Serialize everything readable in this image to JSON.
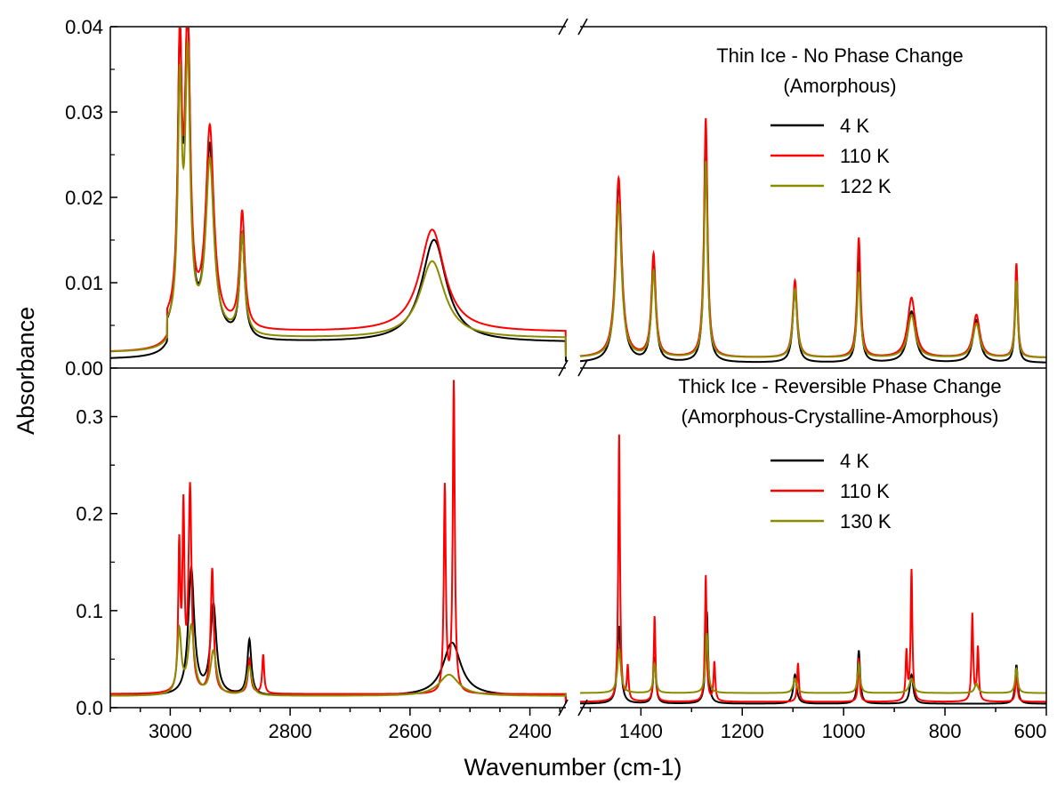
{
  "figure": {
    "ylabel": "Absorbance",
    "xlabel": "Wavenumber (cm-1)",
    "x_ticks_left": [
      "3000",
      "2800",
      "2600",
      "2400"
    ],
    "x_ticks_right": [
      "1400",
      "1200",
      "1000",
      "800",
      "600"
    ]
  },
  "colors": {
    "4 K": "#000000",
    "110 K": "#ff0000",
    "122 K": "#8b8b00",
    "130 K": "#8b8b00"
  },
  "chart_data": [
    {
      "type": "line",
      "panel": "top",
      "title": "Thin Ice - No Phase Change",
      "subtitle": "(Amorphous)",
      "xlabel": "Wavenumber (cm-1)",
      "ylabel": "Absorbance",
      "x_break": [
        2340,
        1520
      ],
      "xlim_left": [
        3100,
        2340
      ],
      "xlim_right": [
        1520,
        600
      ],
      "ylim": [
        0,
        0.04
      ],
      "y_ticks": [
        "0.00",
        "0.01",
        "0.02",
        "0.03",
        "0.04"
      ],
      "legend": "top-right",
      "series": [
        {
          "name": "4 K",
          "color": "#000000",
          "peaks": [
            {
              "x": 2984,
              "y": 0.032,
              "w": 4
            },
            {
              "x": 2971,
              "y": 0.036,
              "w": 5
            },
            {
              "x": 2934,
              "y": 0.022,
              "w": 8
            },
            {
              "x": 2880,
              "y": 0.012,
              "w": 5
            },
            {
              "x": 2560,
              "y": 0.012,
              "w": 25
            },
            {
              "x": 1444,
              "y": 0.021,
              "w": 7
            },
            {
              "x": 1375,
              "y": 0.012,
              "w": 5
            },
            {
              "x": 1272,
              "y": 0.027,
              "w": 4
            },
            {
              "x": 1096,
              "y": 0.009,
              "w": 5
            },
            {
              "x": 970,
              "y": 0.013,
              "w": 4
            },
            {
              "x": 866,
              "y": 0.006,
              "w": 9
            },
            {
              "x": 738,
              "y": 0.005,
              "w": 8
            },
            {
              "x": 659,
              "y": 0.011,
              "w": 3
            }
          ]
        },
        {
          "name": "110 K",
          "color": "#ff0000",
          "peaks": [
            {
              "x": 2984,
              "y": 0.0315,
              "w": 4
            },
            {
              "x": 2971,
              "y": 0.0355,
              "w": 5
            },
            {
              "x": 2934,
              "y": 0.023,
              "w": 8
            },
            {
              "x": 2880,
              "y": 0.0135,
              "w": 5
            },
            {
              "x": 2563,
              "y": 0.012,
              "w": 25
            },
            {
              "x": 1444,
              "y": 0.021,
              "w": 7
            },
            {
              "x": 1375,
              "y": 0.012,
              "w": 5
            },
            {
              "x": 1272,
              "y": 0.028,
              "w": 4
            },
            {
              "x": 1096,
              "y": 0.009,
              "w": 5
            },
            {
              "x": 970,
              "y": 0.014,
              "w": 4
            },
            {
              "x": 866,
              "y": 0.007,
              "w": 9
            },
            {
              "x": 738,
              "y": 0.005,
              "w": 8
            },
            {
              "x": 659,
              "y": 0.011,
              "w": 3
            }
          ]
        },
        {
          "name": "122 K",
          "color": "#8b8b00",
          "peaks": [
            {
              "x": 2984,
              "y": 0.027,
              "w": 4
            },
            {
              "x": 2971,
              "y": 0.031,
              "w": 5
            },
            {
              "x": 2934,
              "y": 0.02,
              "w": 8
            },
            {
              "x": 2880,
              "y": 0.0115,
              "w": 5
            },
            {
              "x": 2563,
              "y": 0.009,
              "w": 25
            },
            {
              "x": 1444,
              "y": 0.018,
              "w": 7
            },
            {
              "x": 1375,
              "y": 0.01,
              "w": 5
            },
            {
              "x": 1272,
              "y": 0.023,
              "w": 4
            },
            {
              "x": 1096,
              "y": 0.008,
              "w": 5
            },
            {
              "x": 970,
              "y": 0.01,
              "w": 4
            },
            {
              "x": 866,
              "y": 0.005,
              "w": 9
            },
            {
              "x": 738,
              "y": 0.004,
              "w": 8
            },
            {
              "x": 659,
              "y": 0.009,
              "w": 3
            }
          ]
        }
      ]
    },
    {
      "type": "line",
      "panel": "bottom",
      "title": "Thick Ice - Reversible Phase Change",
      "subtitle": "(Amorphous-Crystalline-Amorphous)",
      "xlabel": "Wavenumber (cm-1)",
      "ylabel": "Absorbance",
      "x_break": [
        2340,
        1520
      ],
      "xlim_left": [
        3100,
        2340
      ],
      "xlim_right": [
        1520,
        600
      ],
      "ylim": [
        0,
        0.35
      ],
      "y_ticks": [
        "0.0",
        "0.1",
        "0.2",
        "0.3"
      ],
      "legend": "right",
      "series": [
        {
          "name": "4 K",
          "color": "#000000",
          "peaks": [
            {
              "x": 2965,
              "y": 0.13,
              "w": 6
            },
            {
              "x": 2928,
              "y": 0.092,
              "w": 6
            },
            {
              "x": 2868,
              "y": 0.057,
              "w": 4
            },
            {
              "x": 2530,
              "y": 0.055,
              "w": 18
            },
            {
              "x": 1443,
              "y": 0.08,
              "w": 4
            },
            {
              "x": 1373,
              "y": 0.048,
              "w": 3
            },
            {
              "x": 1270,
              "y": 0.095,
              "w": 3
            },
            {
              "x": 1096,
              "y": 0.03,
              "w": 4
            },
            {
              "x": 970,
              "y": 0.055,
              "w": 3
            },
            {
              "x": 866,
              "y": 0.03,
              "w": 4
            },
            {
              "x": 659,
              "y": 0.04,
              "w": 3
            }
          ]
        },
        {
          "name": "110 K",
          "color": "#ff0000",
          "peaks": [
            {
              "x": 2985,
              "y": 0.145,
              "w": 2
            },
            {
              "x": 2978,
              "y": 0.18,
              "w": 2
            },
            {
              "x": 2967,
              "y": 0.21,
              "w": 3
            },
            {
              "x": 2930,
              "y": 0.128,
              "w": 3
            },
            {
              "x": 2868,
              "y": 0.035,
              "w": 3
            },
            {
              "x": 2845,
              "y": 0.04,
              "w": 2
            },
            {
              "x": 2542,
              "y": 0.212,
              "w": 2
            },
            {
              "x": 2527,
              "y": 0.32,
              "w": 2
            },
            {
              "x": 1443,
              "y": 0.275,
              "w": 2
            },
            {
              "x": 1426,
              "y": 0.035,
              "w": 2
            },
            {
              "x": 1373,
              "y": 0.088,
              "w": 2
            },
            {
              "x": 1272,
              "y": 0.13,
              "w": 2
            },
            {
              "x": 1255,
              "y": 0.04,
              "w": 2
            },
            {
              "x": 1090,
              "y": 0.04,
              "w": 2
            },
            {
              "x": 970,
              "y": 0.045,
              "w": 2
            },
            {
              "x": 876,
              "y": 0.05,
              "w": 2
            },
            {
              "x": 866,
              "y": 0.135,
              "w": 2
            },
            {
              "x": 746,
              "y": 0.09,
              "w": 2
            },
            {
              "x": 735,
              "y": 0.055,
              "w": 2
            },
            {
              "x": 659,
              "y": 0.035,
              "w": 2
            }
          ]
        },
        {
          "name": "130 K",
          "color": "#8b8b00",
          "peaks": [
            {
              "x": 2985,
              "y": 0.065,
              "w": 4
            },
            {
              "x": 2965,
              "y": 0.07,
              "w": 6
            },
            {
              "x": 2928,
              "y": 0.045,
              "w": 6
            },
            {
              "x": 2868,
              "y": 0.03,
              "w": 5
            },
            {
              "x": 2535,
              "y": 0.022,
              "w": 20
            },
            {
              "x": 1443,
              "y": 0.045,
              "w": 4
            },
            {
              "x": 1373,
              "y": 0.03,
              "w": 3
            },
            {
              "x": 1270,
              "y": 0.062,
              "w": 3
            },
            {
              "x": 1096,
              "y": 0.015,
              "w": 4
            },
            {
              "x": 970,
              "y": 0.03,
              "w": 3
            },
            {
              "x": 866,
              "y": 0.015,
              "w": 5
            },
            {
              "x": 738,
              "y": 0.01,
              "w": 4
            },
            {
              "x": 659,
              "y": 0.025,
              "w": 3
            }
          ]
        }
      ]
    }
  ]
}
